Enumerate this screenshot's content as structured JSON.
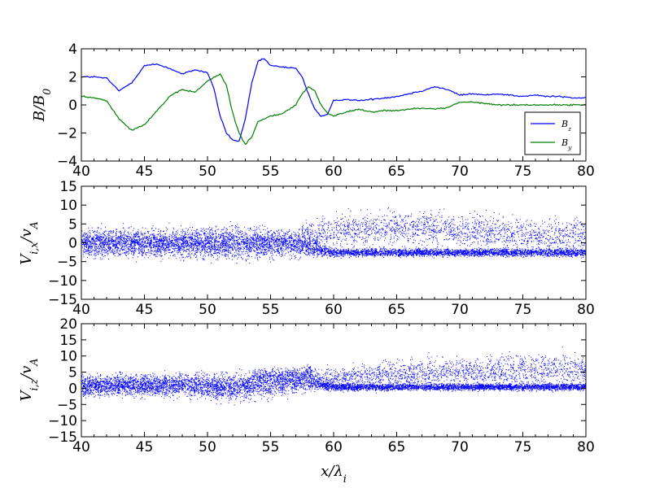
{
  "figure": {
    "xlabel": "x/λ_i"
  },
  "chart_data": [
    {
      "type": "line",
      "panel": "top",
      "ylabel": "B/B_0",
      "xlim": [
        40,
        80
      ],
      "ylim": [
        -4,
        4
      ],
      "xticks": [
        "40",
        "45",
        "50",
        "55",
        "60",
        "65",
        "70",
        "75",
        "80"
      ],
      "yticks": [
        "4",
        "2",
        "0",
        "−2",
        "−4"
      ],
      "legend": {
        "placement": "lower-right",
        "entries": [
          "B_z",
          "B_y"
        ]
      },
      "series": [
        {
          "name": "B_z",
          "color": "#0000ff",
          "x": [
            40,
            41,
            42,
            43,
            44,
            45,
            46,
            47,
            48,
            49,
            50,
            50.5,
            51,
            51.5,
            52,
            52.5,
            53,
            53.5,
            54,
            54.5,
            55,
            56,
            57,
            57.5,
            58,
            58.5,
            59,
            59.5,
            60,
            61,
            62,
            63,
            64,
            65,
            66,
            67,
            68,
            69,
            70,
            71,
            72,
            73,
            74,
            75,
            76,
            77,
            78,
            79,
            80
          ],
          "values": [
            2.0,
            2.0,
            1.9,
            1.0,
            1.6,
            2.8,
            2.9,
            2.6,
            2.2,
            2.5,
            2.3,
            1.2,
            -0.8,
            -2.0,
            -2.5,
            -2.6,
            -1.0,
            1.5,
            3.1,
            3.3,
            2.8,
            2.7,
            2.6,
            2.0,
            0.8,
            -0.3,
            -0.8,
            -0.7,
            0.3,
            0.4,
            0.3,
            0.4,
            0.5,
            0.6,
            0.8,
            1.0,
            1.3,
            1.1,
            0.7,
            0.8,
            0.7,
            0.8,
            0.7,
            0.6,
            0.7,
            0.6,
            0.6,
            0.5,
            0.5
          ]
        },
        {
          "name": "B_y",
          "color": "#008000",
          "x": [
            40,
            41,
            42,
            43,
            44,
            45,
            46,
            47,
            48,
            49,
            50,
            51,
            51.5,
            52,
            52.5,
            53,
            53.5,
            54,
            55,
            56,
            57,
            57.5,
            58,
            58.5,
            59,
            59.5,
            60,
            61,
            62,
            63,
            64,
            65,
            66,
            67,
            68,
            69,
            70,
            71,
            72,
            73,
            74,
            75,
            76,
            77,
            78,
            79,
            80
          ],
          "values": [
            0.6,
            0.5,
            0.3,
            -1.0,
            -1.8,
            -1.4,
            -0.4,
            0.6,
            1.1,
            0.9,
            1.7,
            2.2,
            1.4,
            -0.6,
            -2.0,
            -2.8,
            -2.3,
            -1.2,
            -0.8,
            -0.6,
            0.0,
            0.8,
            1.3,
            1.0,
            0.0,
            -0.6,
            -0.8,
            -0.5,
            -0.3,
            -0.5,
            -0.4,
            -0.4,
            -0.3,
            -0.2,
            -0.3,
            -0.2,
            0.2,
            0.2,
            0.1,
            0.0,
            0.0,
            0.0,
            0.0,
            0.0,
            0.0,
            0.0,
            0.0
          ]
        }
      ]
    },
    {
      "type": "scatter",
      "panel": "middle",
      "ylabel": "V_{i,x}/v_A",
      "xlim": [
        40,
        80
      ],
      "ylim": [
        -15,
        15
      ],
      "xticks": [
        "40",
        "45",
        "50",
        "55",
        "60",
        "65",
        "70",
        "75",
        "80"
      ],
      "yticks": [
        "15",
        "10",
        "5",
        "0",
        "−5",
        "−10",
        "−15"
      ],
      "color": "#0000ff",
      "series": [
        {
          "x": [
            40,
            43,
            46,
            49,
            52,
            55,
            57,
            58,
            59,
            60,
            62,
            65,
            68,
            71,
            74,
            77,
            80
          ],
          "core_center": [
            0,
            0,
            0,
            0,
            0,
            0,
            -0.5,
            -1,
            -2,
            -2.5,
            -2.5,
            -2.5,
            -2.5,
            -2.5,
            -2.5,
            -2.5,
            -2.5
          ],
          "core_halfwidth": [
            3.5,
            3.5,
            3.5,
            3.5,
            4,
            3.5,
            3,
            2.5,
            1.5,
            1,
            1,
            1,
            1,
            1,
            1,
            1,
            1
          ],
          "beam_center": [
            null,
            null,
            null,
            null,
            null,
            null,
            1,
            2,
            2.5,
            3,
            3.5,
            4,
            4,
            3,
            2.5,
            2,
            2
          ],
          "beam_halfwidth": [
            null,
            null,
            null,
            null,
            null,
            null,
            3,
            3.5,
            4,
            4,
            4,
            4,
            4,
            4,
            4,
            4,
            4
          ]
        }
      ]
    },
    {
      "type": "scatter",
      "panel": "bottom",
      "ylabel": "V_{i,z}/v_A",
      "xlim": [
        40,
        80
      ],
      "ylim": [
        -15,
        20
      ],
      "xticks": [
        "40",
        "45",
        "50",
        "55",
        "60",
        "65",
        "70",
        "75",
        "80"
      ],
      "yticks": [
        "20",
        "15",
        "10",
        "5",
        "0",
        "−5",
        "−10",
        "−15"
      ],
      "color": "#0000ff",
      "series": [
        {
          "x": [
            40,
            43,
            46,
            49,
            52,
            55,
            57,
            58,
            59,
            60,
            62,
            65,
            68,
            71,
            74,
            77,
            80
          ],
          "core_center": [
            1,
            1,
            1,
            1,
            0.5,
            1,
            2,
            2.5,
            1,
            0.5,
            0.5,
            0.5,
            0.5,
            0.5,
            0.5,
            0.5,
            0.5
          ],
          "core_halfwidth": [
            3,
            3,
            3,
            3.5,
            4,
            3.5,
            3,
            3,
            1.5,
            1,
            1,
            1,
            1,
            1,
            1,
            1,
            1
          ],
          "beam_center": [
            null,
            null,
            null,
            null,
            null,
            4,
            4.5,
            5,
            3,
            3,
            3.5,
            4.5,
            5,
            5,
            5.5,
            6,
            6
          ],
          "beam_halfwidth": [
            null,
            null,
            null,
            null,
            null,
            2,
            2,
            2.5,
            3,
            3,
            3.5,
            4,
            4,
            4,
            4.5,
            4.5,
            4.5
          ]
        }
      ]
    }
  ]
}
